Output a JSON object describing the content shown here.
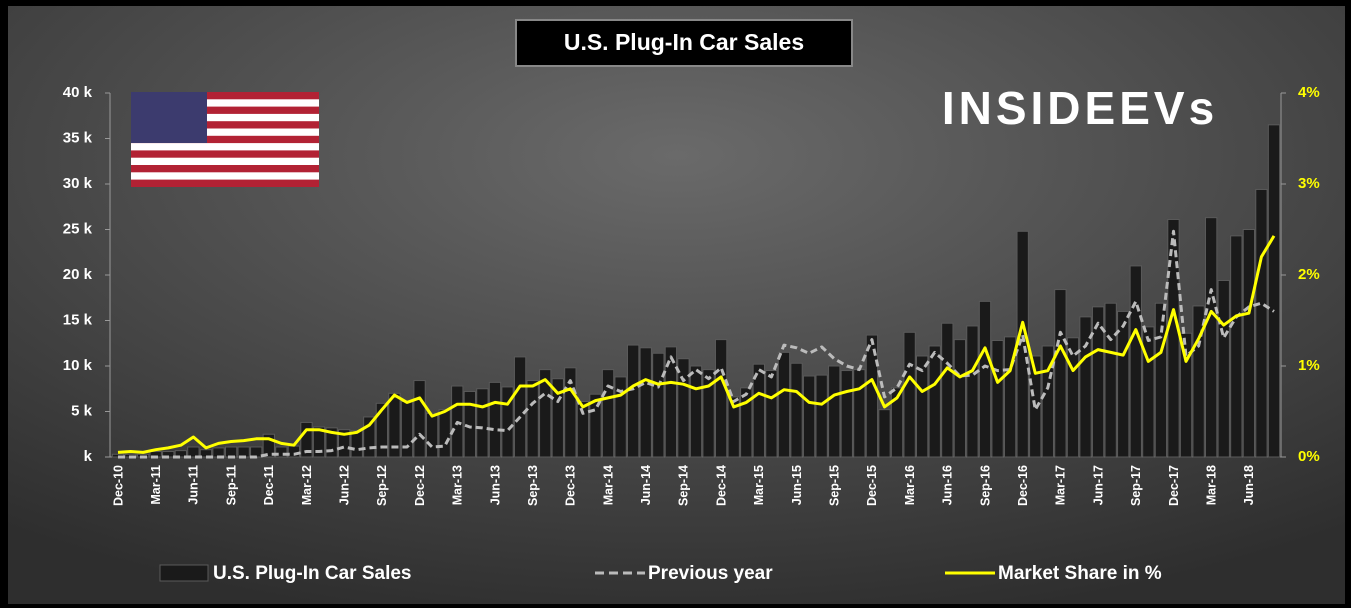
{
  "chart_data": {
    "type": "bar_line",
    "title": "U.S. Plug-In Car Sales",
    "logo": "INSIDEEVs",
    "categories": [
      "Dec-10",
      null,
      null,
      "Mar-11",
      null,
      null,
      "Jun-11",
      null,
      null,
      "Sep-11",
      null,
      null,
      "Dec-11",
      null,
      null,
      "Mar-12",
      null,
      null,
      "Jun-12",
      null,
      null,
      "Sep-12",
      null,
      null,
      "Dec-12",
      null,
      null,
      "Mar-13",
      null,
      null,
      "Jun-13",
      null,
      null,
      "Sep-13",
      null,
      null,
      "Dec-13",
      null,
      null,
      "Mar-14",
      null,
      null,
      "Jun-14",
      null,
      null,
      "Sep-14",
      null,
      null,
      "Dec-14",
      null,
      null,
      "Mar-15",
      null,
      null,
      "Jun-15",
      null,
      null,
      "Sep-15",
      null,
      null,
      "Dec-15",
      null,
      null,
      "Mar-16",
      null,
      null,
      "Jun-16",
      null,
      null,
      "Sep-16",
      null,
      null,
      "Dec-16",
      null,
      null,
      "Mar-17",
      null,
      null,
      "Jun-17",
      null,
      null,
      "Sep-17",
      null,
      null,
      "Dec-17",
      null,
      null,
      "Mar-18",
      null,
      null,
      "Jun-18",
      null,
      null
    ],
    "series": [
      {
        "name": "U.S. Plug-In Car Sales",
        "kind": "bar",
        "color": "#1a1a1a",
        "values": [
          0.3,
          0.3,
          0.3,
          0.6,
          0.6,
          0.7,
          1.1,
          0.8,
          1.0,
          1.1,
          1.1,
          1.1,
          2.5,
          1.1,
          1.2,
          3.8,
          3.3,
          3.2,
          3.0,
          2.9,
          4.4,
          5.9,
          7.0,
          6.1,
          8.4,
          4.8,
          5.2,
          7.8,
          7.2,
          7.5,
          8.2,
          7.7,
          11.0,
          8.4,
          9.6,
          8.6,
          9.8,
          6.1,
          6.9,
          9.6,
          8.8,
          12.3,
          12.0,
          11.4,
          12.1,
          10.8,
          10.0,
          9.6,
          12.9,
          6.6,
          7.6,
          10.2,
          9.5,
          11.5,
          10.3,
          8.9,
          9.0,
          10.0,
          9.5,
          9.6,
          13.4,
          5.2,
          7.6,
          13.7,
          11.1,
          12.2,
          14.7,
          12.9,
          14.4,
          17.1,
          12.8,
          13.2,
          24.8,
          11.1,
          12.2,
          18.4,
          13.1,
          15.4,
          16.5,
          16.9,
          16.0,
          21.0,
          14.3,
          16.9,
          26.1,
          13.6,
          16.6,
          26.3,
          19.4,
          24.3,
          25.0,
          29.4,
          36.5
        ]
      },
      {
        "name": "Previous year",
        "kind": "dashed",
        "color": "#bbbbbb",
        "values": [
          0,
          0,
          0,
          0,
          0,
          0,
          0,
          0,
          0,
          0,
          0,
          0,
          0.3,
          0.3,
          0.3,
          0.6,
          0.6,
          0.7,
          1.1,
          0.8,
          1.0,
          1.1,
          1.1,
          1.1,
          2.5,
          1.1,
          1.2,
          3.8,
          3.3,
          3.2,
          3.0,
          2.9,
          4.4,
          5.9,
          7.0,
          6.1,
          8.4,
          4.8,
          5.2,
          7.8,
          7.2,
          7.5,
          8.2,
          7.7,
          11.0,
          8.4,
          9.6,
          8.6,
          9.8,
          6.1,
          6.9,
          9.6,
          8.8,
          12.3,
          12.0,
          11.4,
          12.1,
          10.8,
          10.0,
          9.6,
          12.9,
          6.6,
          7.6,
          10.2,
          9.5,
          11.5,
          10.3,
          8.9,
          9.0,
          10.0,
          9.5,
          9.6,
          13.4,
          5.2,
          7.6,
          13.7,
          11.1,
          12.2,
          14.7,
          12.9,
          14.4,
          17.1,
          12.8,
          13.2,
          24.8,
          11.1,
          12.2,
          18.4,
          13.1,
          15.4,
          16.5,
          16.9,
          16.0
        ]
      },
      {
        "name": "Market Share in %",
        "kind": "line",
        "axis": "y2",
        "color": "#ffff00",
        "values": [
          0.05,
          0.06,
          0.05,
          0.08,
          0.1,
          0.13,
          0.22,
          0.1,
          0.15,
          0.17,
          0.18,
          0.2,
          0.2,
          0.15,
          0.13,
          0.3,
          0.3,
          0.27,
          0.25,
          0.27,
          0.35,
          0.52,
          0.68,
          0.6,
          0.65,
          0.45,
          0.5,
          0.58,
          0.58,
          0.55,
          0.6,
          0.58,
          0.78,
          0.78,
          0.85,
          0.7,
          0.75,
          0.55,
          0.62,
          0.65,
          0.68,
          0.78,
          0.85,
          0.8,
          0.82,
          0.8,
          0.75,
          0.78,
          0.88,
          0.55,
          0.6,
          0.7,
          0.65,
          0.74,
          0.72,
          0.6,
          0.58,
          0.68,
          0.72,
          0.75,
          0.85,
          0.55,
          0.65,
          0.88,
          0.72,
          0.8,
          0.98,
          0.88,
          0.95,
          1.2,
          0.82,
          0.95,
          1.48,
          0.92,
          0.95,
          1.22,
          0.95,
          1.1,
          1.18,
          1.15,
          1.12,
          1.4,
          1.05,
          1.15,
          1.62,
          1.05,
          1.3,
          1.6,
          1.45,
          1.55,
          1.58,
          2.2,
          2.43
        ]
      }
    ],
    "ylim": [
      0,
      40
    ],
    "yticks": [
      {
        "value": 0,
        "label": "k"
      },
      {
        "value": 5,
        "label": "5 k"
      },
      {
        "value": 10,
        "label": "10 k"
      },
      {
        "value": 15,
        "label": "15 k"
      },
      {
        "value": 20,
        "label": "20 k"
      },
      {
        "value": 25,
        "label": "25 k"
      },
      {
        "value": 30,
        "label": "30 k"
      },
      {
        "value": 35,
        "label": "35 k"
      },
      {
        "value": 40,
        "label": "40 k"
      }
    ],
    "y2lim": [
      0,
      4
    ],
    "y2ticks": [
      {
        "value": 0,
        "label": "0%"
      },
      {
        "value": 1,
        "label": "1%"
      },
      {
        "value": 2,
        "label": "2%"
      },
      {
        "value": 3,
        "label": "3%"
      },
      {
        "value": 4,
        "label": "4%"
      }
    ]
  }
}
